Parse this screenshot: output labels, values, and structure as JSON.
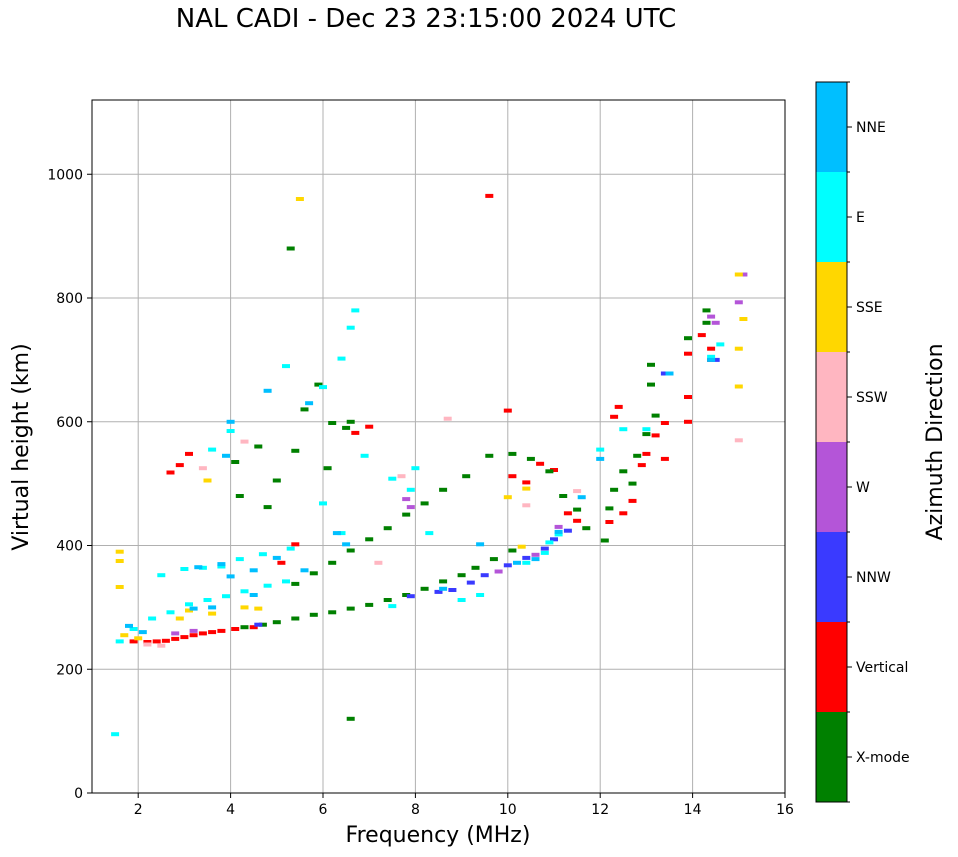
{
  "chart_data": {
    "type": "scatter",
    "title": "NAL CADI - Dec 23 23:15:00 2024 UTC",
    "xlabel": "Frequency (MHz)",
    "ylabel": "Virtual height (km)",
    "xlim": [
      1,
      16
    ],
    "ylim": [
      0,
      1120
    ],
    "xticks": [
      2,
      4,
      6,
      8,
      10,
      12,
      14,
      16
    ],
    "yticks": [
      0,
      200,
      400,
      600,
      800,
      1000
    ],
    "grid": true,
    "colorbar": {
      "label": "Azimuth Direction",
      "entries": [
        {
          "name": "X-mode",
          "color": "#008000"
        },
        {
          "name": "Vertical",
          "color": "#ff0000"
        },
        {
          "name": "NNW",
          "color": "#3a3aff"
        },
        {
          "name": "W",
          "color": "#b455d8"
        },
        {
          "name": "SSW",
          "color": "#ffb6c1"
        },
        {
          "name": "SSE",
          "color": "#ffd700"
        },
        {
          "name": "E",
          "color": "#00ffff"
        },
        {
          "name": "NNE",
          "color": "#00bfff"
        }
      ]
    },
    "series": [
      {
        "name": "Vertical",
        "color": "#ff0000",
        "points": [
          [
            1.9,
            245
          ],
          [
            2.2,
            244
          ],
          [
            2.4,
            245
          ],
          [
            2.6,
            246
          ],
          [
            2.8,
            249
          ],
          [
            3.0,
            252
          ],
          [
            3.2,
            255
          ],
          [
            3.4,
            258
          ],
          [
            3.6,
            260
          ],
          [
            3.8,
            262
          ],
          [
            4.1,
            265
          ],
          [
            4.5,
            268
          ],
          [
            2.7,
            518
          ],
          [
            2.9,
            530
          ],
          [
            3.1,
            548
          ],
          [
            9.6,
            965
          ],
          [
            10.0,
            618
          ],
          [
            10.1,
            512
          ],
          [
            10.4,
            502
          ],
          [
            10.7,
            532
          ],
          [
            11.0,
            522
          ],
          [
            11.3,
            452
          ],
          [
            11.5,
            440
          ],
          [
            12.2,
            438
          ],
          [
            12.5,
            452
          ],
          [
            12.7,
            472
          ],
          [
            12.9,
            530
          ],
          [
            13.0,
            548
          ],
          [
            13.2,
            578
          ],
          [
            13.4,
            598
          ],
          [
            13.9,
            600
          ],
          [
            13.9,
            640
          ],
          [
            13.9,
            710
          ],
          [
            14.2,
            740
          ],
          [
            14.4,
            718
          ],
          [
            14.4,
            700
          ],
          [
            13.4,
            540
          ],
          [
            12.3,
            608
          ],
          [
            12.4,
            624
          ],
          [
            6.7,
            582
          ],
          [
            7.0,
            592
          ],
          [
            5.4,
            402
          ],
          [
            5.1,
            372
          ]
        ]
      },
      {
        "name": "X-mode",
        "color": "#008000",
        "points": [
          [
            4.3,
            268
          ],
          [
            4.7,
            272
          ],
          [
            5.0,
            276
          ],
          [
            5.4,
            282
          ],
          [
            5.8,
            288
          ],
          [
            6.2,
            292
          ],
          [
            6.6,
            298
          ],
          [
            7.0,
            304
          ],
          [
            7.4,
            312
          ],
          [
            7.8,
            320
          ],
          [
            8.2,
            330
          ],
          [
            8.6,
            342
          ],
          [
            9.0,
            352
          ],
          [
            9.3,
            364
          ],
          [
            9.7,
            378
          ],
          [
            10.1,
            392
          ],
          [
            5.4,
            338
          ],
          [
            5.8,
            355
          ],
          [
            6.2,
            372
          ],
          [
            6.6,
            392
          ],
          [
            7.0,
            410
          ],
          [
            7.4,
            428
          ],
          [
            7.8,
            450
          ],
          [
            8.2,
            468
          ],
          [
            8.6,
            490
          ],
          [
            9.1,
            512
          ],
          [
            9.6,
            545
          ],
          [
            10.1,
            548
          ],
          [
            10.5,
            540
          ],
          [
            10.9,
            520
          ],
          [
            11.2,
            480
          ],
          [
            11.5,
            458
          ],
          [
            11.7,
            428
          ],
          [
            12.1,
            408
          ],
          [
            12.2,
            460
          ],
          [
            12.3,
            490
          ],
          [
            12.5,
            520
          ],
          [
            12.7,
            500
          ],
          [
            12.8,
            545
          ],
          [
            13.0,
            580
          ],
          [
            13.2,
            610
          ],
          [
            13.1,
            660
          ],
          [
            13.1,
            692
          ],
          [
            13.9,
            735
          ],
          [
            14.3,
            760
          ],
          [
            14.3,
            780
          ],
          [
            6.2,
            598
          ],
          [
            6.6,
            600
          ],
          [
            6.5,
            590
          ],
          [
            5.6,
            620
          ],
          [
            5.9,
            660
          ],
          [
            5.3,
            880
          ],
          [
            4.6,
            560
          ],
          [
            5.4,
            553
          ],
          [
            6.6,
            120
          ],
          [
            4.1,
            535
          ],
          [
            5.0,
            505
          ],
          [
            4.2,
            480
          ],
          [
            4.8,
            462
          ],
          [
            6.1,
            525
          ]
        ]
      },
      {
        "name": "NNW",
        "color": "#3a3aff",
        "points": [
          [
            8.5,
            325
          ],
          [
            8.8,
            328
          ],
          [
            9.2,
            340
          ],
          [
            9.5,
            352
          ],
          [
            10.0,
            368
          ],
          [
            10.4,
            380
          ],
          [
            10.8,
            395
          ],
          [
            11.0,
            410
          ],
          [
            11.3,
            424
          ],
          [
            13.4,
            678
          ],
          [
            14.5,
            700
          ],
          [
            7.9,
            318
          ],
          [
            4.6,
            272
          ]
        ]
      },
      {
        "name": "W",
        "color": "#b455d8",
        "points": [
          [
            15.0,
            793
          ],
          [
            14.5,
            760
          ],
          [
            14.4,
            770
          ],
          [
            10.6,
            385
          ],
          [
            9.8,
            358
          ],
          [
            11.1,
            430
          ],
          [
            7.9,
            462
          ],
          [
            7.8,
            475
          ],
          [
            15.1,
            838
          ],
          [
            3.2,
            262
          ],
          [
            2.8,
            258
          ]
        ]
      },
      {
        "name": "SSW",
        "color": "#ffb6c1",
        "points": [
          [
            8.7,
            605
          ],
          [
            15.0,
            570
          ],
          [
            2.5,
            238
          ],
          [
            2.2,
            240
          ],
          [
            11.5,
            488
          ],
          [
            7.7,
            512
          ],
          [
            3.4,
            525
          ],
          [
            4.3,
            568
          ],
          [
            10.4,
            465
          ],
          [
            7.2,
            372
          ]
        ]
      },
      {
        "name": "SSE",
        "color": "#ffd700",
        "points": [
          [
            5.5,
            960
          ],
          [
            15.0,
            838
          ],
          [
            15.1,
            766
          ],
          [
            15.0,
            718
          ],
          [
            15.0,
            657
          ],
          [
            1.6,
            390
          ],
          [
            1.6,
            375
          ],
          [
            1.6,
            333
          ],
          [
            1.7,
            255
          ],
          [
            2.0,
            250
          ],
          [
            2.9,
            282
          ],
          [
            3.1,
            295
          ],
          [
            3.6,
            290
          ],
          [
            4.3,
            300
          ],
          [
            4.6,
            298
          ],
          [
            10.0,
            478
          ],
          [
            10.4,
            492
          ],
          [
            10.3,
            398
          ],
          [
            3.5,
            505
          ]
        ]
      },
      {
        "name": "E",
        "color": "#00ffff",
        "points": [
          [
            1.5,
            95
          ],
          [
            1.6,
            245
          ],
          [
            1.9,
            265
          ],
          [
            2.3,
            282
          ],
          [
            2.7,
            292
          ],
          [
            3.1,
            305
          ],
          [
            3.5,
            312
          ],
          [
            3.9,
            318
          ],
          [
            4.3,
            326
          ],
          [
            4.8,
            335
          ],
          [
            5.2,
            342
          ],
          [
            2.5,
            352
          ],
          [
            3.0,
            362
          ],
          [
            3.4,
            364
          ],
          [
            3.8,
            366
          ],
          [
            4.2,
            378
          ],
          [
            4.7,
            386
          ],
          [
            5.3,
            395
          ],
          [
            6.6,
            752
          ],
          [
            6.4,
            702
          ],
          [
            6.0,
            656
          ],
          [
            7.5,
            508
          ],
          [
            7.9,
            490
          ],
          [
            8.3,
            420
          ],
          [
            9.0,
            312
          ],
          [
            9.4,
            320
          ],
          [
            6.9,
            545
          ],
          [
            6.0,
            468
          ],
          [
            7.5,
            302
          ],
          [
            10.4,
            372
          ],
          [
            10.8,
            388
          ],
          [
            11.1,
            418
          ],
          [
            12.0,
            555
          ],
          [
            12.5,
            588
          ],
          [
            13.0,
            588
          ],
          [
            14.4,
            705
          ],
          [
            14.6,
            725
          ],
          [
            4.0,
            585
          ],
          [
            3.6,
            555
          ],
          [
            6.4,
            420
          ],
          [
            8.0,
            525
          ],
          [
            10.9,
            405
          ],
          [
            5.2,
            690
          ],
          [
            6.7,
            780
          ]
        ]
      },
      {
        "name": "NNE",
        "color": "#00bfff",
        "points": [
          [
            3.2,
            298
          ],
          [
            3.6,
            300
          ],
          [
            3.3,
            365
          ],
          [
            3.8,
            370
          ],
          [
            4.0,
            350
          ],
          [
            4.5,
            360
          ],
          [
            5.0,
            380
          ],
          [
            3.9,
            545
          ],
          [
            4.0,
            600
          ],
          [
            6.3,
            420
          ],
          [
            6.5,
            402
          ],
          [
            8.6,
            330
          ],
          [
            10.2,
            372
          ],
          [
            10.6,
            378
          ],
          [
            11.1,
            422
          ],
          [
            13.5,
            678
          ],
          [
            14.4,
            700
          ],
          [
            12.0,
            540
          ],
          [
            11.6,
            478
          ],
          [
            5.6,
            360
          ],
          [
            4.5,
            320
          ],
          [
            2.1,
            260
          ],
          [
            1.8,
            270
          ],
          [
            4.8,
            650
          ],
          [
            5.7,
            630
          ],
          [
            9.4,
            402
          ]
        ]
      }
    ]
  }
}
